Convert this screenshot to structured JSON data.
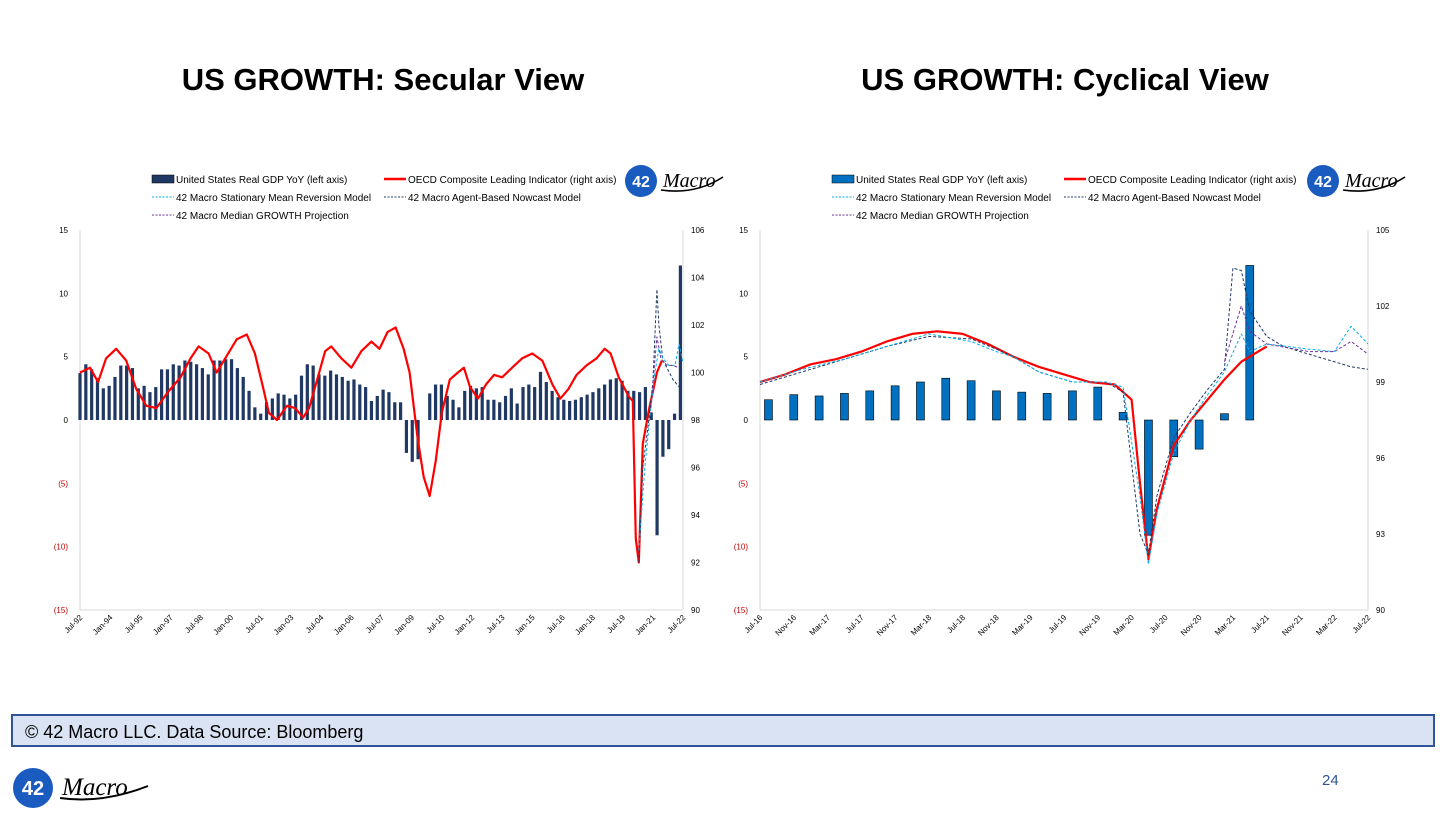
{
  "slide": {
    "footer_text": "© 42 Macro LLC. Data Source: Bloomberg",
    "page_number": "24",
    "brand": {
      "badge": "42",
      "script": "Macro"
    }
  },
  "colors": {
    "gdp_bar": "#1f3864",
    "gdp_bar_cyclical": "#0070c0",
    "oecd": "#ff0000",
    "mean_reversion": "#00b0f0",
    "nowcast": "#1f3864",
    "median": "#7030a0",
    "brand_blue": "#1a5bbf"
  },
  "legend_labels": {
    "gdp": "United States Real GDP YoY (left axis)",
    "oecd": "OECD Composite Leading Indicator (right axis)",
    "mean_reversion": "42 Macro Stationary Mean Reversion Model",
    "nowcast": "42 Macro Agent-Based Nowcast Model",
    "median": "42 Macro Median GROWTH Projection"
  },
  "chart_data": [
    {
      "type": "bar+line",
      "title": "US GROWTH: Secular View",
      "y_left": {
        "min": -15,
        "max": 15,
        "ticks": [
          "15",
          "10",
          "5",
          "0",
          "(5)",
          "(10)",
          "(15)"
        ]
      },
      "y_right": {
        "min": 90,
        "max": 106,
        "ticks": [
          "106",
          "104",
          "102",
          "100",
          "98",
          "96",
          "94",
          "92",
          "90"
        ]
      },
      "x_ticks": [
        "Jul-92",
        "Jan-94",
        "Jul-95",
        "Jan-97",
        "Jul-98",
        "Jan-00",
        "Jul-01",
        "Jan-03",
        "Jul-04",
        "Jan-06",
        "Jul-07",
        "Jan-09",
        "Jul-10",
        "Jan-12",
        "Jul-13",
        "Jan-15",
        "Jul-16",
        "Jan-18",
        "Jul-19",
        "Jan-21",
        "Jul-22"
      ],
      "x_range": [
        1992.5,
        2022.5
      ],
      "gdp_quarterly": [
        3.7,
        4.4,
        4.0,
        3.3,
        2.5,
        2.7,
        3.4,
        4.3,
        4.3,
        4.1,
        2.5,
        2.7,
        2.2,
        2.6,
        4.0,
        4.0,
        4.4,
        4.3,
        4.7,
        4.6,
        4.4,
        4.1,
        3.6,
        4.7,
        4.7,
        4.8,
        4.8,
        4.1,
        3.4,
        2.3,
        1.0,
        0.5,
        1.4,
        1.7,
        2.1,
        2.0,
        1.7,
        2.0,
        3.5,
        4.4,
        4.3,
        3.6,
        3.5,
        3.9,
        3.6,
        3.4,
        3.1,
        3.2,
        2.8,
        2.6,
        1.5,
        1.9,
        2.4,
        2.2,
        1.4,
        1.4,
        -2.6,
        -3.3,
        -3.1,
        0.0,
        2.1,
        2.8,
        2.8,
        1.9,
        1.6,
        1.0,
        2.3,
        2.7,
        2.5,
        2.6,
        1.6,
        1.6,
        1.4,
        1.9,
        2.5,
        1.3,
        2.6,
        2.8,
        2.6,
        3.8,
        3.0,
        2.3,
        1.8,
        1.6,
        1.5,
        1.6,
        1.8,
        2.0,
        2.2,
        2.5,
        2.8,
        3.2,
        3.3,
        3.1,
        2.3,
        2.3,
        2.2,
        2.6,
        0.6,
        -9.1,
        -2.9,
        -2.3,
        0.5,
        12.2
      ],
      "oecd_points": [
        [
          1992.5,
          100.0
        ],
        [
          1993.0,
          100.2
        ],
        [
          1993.4,
          99.6
        ],
        [
          1993.8,
          100.6
        ],
        [
          1994.3,
          101.0
        ],
        [
          1994.8,
          100.5
        ],
        [
          1995.3,
          99.3
        ],
        [
          1995.8,
          98.6
        ],
        [
          1996.3,
          98.5
        ],
        [
          1996.9,
          99.2
        ],
        [
          1997.5,
          99.8
        ],
        [
          1998.0,
          100.6
        ],
        [
          1998.4,
          101.1
        ],
        [
          1998.9,
          100.8
        ],
        [
          1999.3,
          100.0
        ],
        [
          1999.8,
          100.7
        ],
        [
          2000.3,
          101.4
        ],
        [
          2000.8,
          101.6
        ],
        [
          2001.2,
          100.8
        ],
        [
          2001.6,
          99.4
        ],
        [
          2001.9,
          98.3
        ],
        [
          2002.3,
          98.0
        ],
        [
          2002.8,
          98.6
        ],
        [
          2003.2,
          98.5
        ],
        [
          2003.6,
          98.1
        ],
        [
          2003.9,
          98.5
        ],
        [
          2004.3,
          99.7
        ],
        [
          2004.7,
          100.9
        ],
        [
          2005.0,
          101.1
        ],
        [
          2005.5,
          100.6
        ],
        [
          2006.0,
          100.2
        ],
        [
          2006.5,
          100.9
        ],
        [
          2007.0,
          101.3
        ],
        [
          2007.4,
          101.0
        ],
        [
          2007.8,
          101.7
        ],
        [
          2008.2,
          101.9
        ],
        [
          2008.6,
          101.0
        ],
        [
          2008.9,
          100.0
        ],
        [
          2009.3,
          97.2
        ],
        [
          2009.6,
          95.6
        ],
        [
          2009.9,
          94.8
        ],
        [
          2010.2,
          96.3
        ],
        [
          2010.5,
          98.3
        ],
        [
          2010.9,
          99.7
        ],
        [
          2011.3,
          100.0
        ],
        [
          2011.6,
          100.2
        ],
        [
          2011.9,
          99.4
        ],
        [
          2012.3,
          98.9
        ],
        [
          2012.7,
          99.5
        ],
        [
          2013.1,
          99.9
        ],
        [
          2013.5,
          99.8
        ],
        [
          2014.0,
          100.2
        ],
        [
          2014.5,
          100.6
        ],
        [
          2015.0,
          100.8
        ],
        [
          2015.5,
          100.5
        ],
        [
          2016.0,
          99.5
        ],
        [
          2016.4,
          98.9
        ],
        [
          2016.8,
          99.3
        ],
        [
          2017.2,
          99.9
        ],
        [
          2017.7,
          100.3
        ],
        [
          2018.2,
          100.6
        ],
        [
          2018.6,
          101.0
        ],
        [
          2018.9,
          100.8
        ],
        [
          2019.3,
          99.8
        ],
        [
          2019.8,
          99.0
        ],
        [
          2020.0,
          98.8
        ],
        [
          2020.15,
          93.0
        ],
        [
          2020.3,
          92.0
        ],
        [
          2020.5,
          97.0
        ],
        [
          2020.8,
          98.4
        ],
        [
          2021.0,
          99.2
        ],
        [
          2021.2,
          100.0
        ],
        [
          2021.45,
          100.5
        ]
      ],
      "nowcast_points": [
        [
          2020.3,
          92.0
        ],
        [
          2020.5,
          96.0
        ],
        [
          2020.8,
          98.0
        ],
        [
          2021.0,
          99.6
        ],
        [
          2021.2,
          103.5
        ],
        [
          2021.3,
          102.0
        ],
        [
          2021.5,
          100.5
        ],
        [
          2021.7,
          100.2
        ],
        [
          2022.0,
          99.7
        ],
        [
          2022.3,
          99.4
        ]
      ],
      "mean_reversion_points": [
        [
          2020.3,
          92.5
        ],
        [
          2020.6,
          96.0
        ],
        [
          2020.9,
          98.5
        ],
        [
          2021.1,
          100.0
        ],
        [
          2021.3,
          101.0
        ],
        [
          2021.5,
          100.6
        ],
        [
          2021.8,
          100.3
        ],
        [
          2022.1,
          100.3
        ],
        [
          2022.3,
          101.2
        ],
        [
          2022.5,
          100.4
        ]
      ],
      "median_points": [
        [
          2020.9,
          98.5
        ],
        [
          2021.2,
          101.5
        ],
        [
          2021.4,
          100.6
        ],
        [
          2021.7,
          100.3
        ],
        [
          2022.0,
          100.3
        ],
        [
          2022.3,
          100.2
        ]
      ]
    },
    {
      "type": "bar+line",
      "title": "US GROWTH: Cyclical View",
      "y_left": {
        "min": -15,
        "max": 15,
        "ticks": [
          "15",
          "10",
          "5",
          "0",
          "(5)",
          "(10)",
          "(15)"
        ]
      },
      "y_right": {
        "min": 90,
        "max": 105,
        "ticks": [
          "105",
          "102",
          "99",
          "96",
          "93",
          "90"
        ]
      },
      "x_ticks": [
        "Jul-16",
        "Nov-16",
        "Mar-17",
        "Jul-17",
        "Nov-17",
        "Mar-18",
        "Jul-18",
        "Nov-18",
        "Mar-19",
        "Jul-19",
        "Nov-19",
        "Mar-20",
        "Jul-20",
        "Nov-20",
        "Mar-21",
        "Jul-21",
        "Nov-21",
        "Mar-22",
        "Jul-22"
      ],
      "x_range": [
        0,
        72
      ],
      "gdp_quarterly": [
        [
          1.6,
          1
        ],
        [
          2.0,
          4
        ],
        [
          1.9,
          7
        ],
        [
          2.1,
          10
        ],
        [
          2.3,
          13
        ],
        [
          2.7,
          16
        ],
        [
          3.0,
          19
        ],
        [
          3.3,
          22
        ],
        [
          3.1,
          25
        ],
        [
          2.3,
          28
        ],
        [
          2.2,
          31
        ],
        [
          2.1,
          34
        ],
        [
          2.3,
          37
        ],
        [
          2.6,
          40
        ],
        [
          0.6,
          43
        ],
        [
          -9.1,
          46
        ],
        [
          -2.9,
          49
        ],
        [
          -2.3,
          52
        ],
        [
          0.5,
          55
        ],
        [
          12.2,
          58
        ]
      ],
      "oecd_points": [
        [
          0,
          99.0
        ],
        [
          3,
          99.3
        ],
        [
          6,
          99.7
        ],
        [
          9,
          99.9
        ],
        [
          12,
          100.2
        ],
        [
          15,
          100.6
        ],
        [
          18,
          100.9
        ],
        [
          21,
          101.0
        ],
        [
          24,
          100.9
        ],
        [
          27,
          100.5
        ],
        [
          30,
          100.0
        ],
        [
          33,
          99.6
        ],
        [
          36,
          99.3
        ],
        [
          39,
          99.0
        ],
        [
          42,
          98.9
        ],
        [
          44,
          98.3
        ],
        [
          45,
          95.0
        ],
        [
          46,
          92.0
        ],
        [
          47,
          94.0
        ],
        [
          49,
          96.5
        ],
        [
          51,
          97.5
        ],
        [
          53,
          98.3
        ],
        [
          55,
          99.1
        ],
        [
          57,
          99.8
        ],
        [
          59,
          100.2
        ],
        [
          60,
          100.4
        ]
      ],
      "nowcast_points": [
        [
          0,
          98.9
        ],
        [
          5,
          99.4
        ],
        [
          10,
          99.9
        ],
        [
          15,
          100.4
        ],
        [
          20,
          100.8
        ],
        [
          25,
          100.7
        ],
        [
          28,
          100.3
        ],
        [
          30,
          100.0
        ],
        [
          33,
          99.4
        ],
        [
          37,
          99.0
        ],
        [
          41,
          99.0
        ],
        [
          43,
          98.6
        ],
        [
          45,
          93.0
        ],
        [
          46,
          92.2
        ],
        [
          47,
          94.5
        ],
        [
          49,
          96.8
        ],
        [
          51,
          97.8
        ],
        [
          53,
          98.7
        ],
        [
          55,
          99.5
        ],
        [
          56,
          103.5
        ],
        [
          57,
          103.4
        ],
        [
          58,
          101.8
        ],
        [
          60,
          100.8
        ],
        [
          62,
          100.4
        ],
        [
          66,
          100.0
        ],
        [
          68,
          99.8
        ],
        [
          70,
          99.6
        ],
        [
          72,
          99.5
        ]
      ],
      "mean_reversion_points": [
        [
          0,
          99.0
        ],
        [
          5,
          99.5
        ],
        [
          10,
          99.9
        ],
        [
          15,
          100.4
        ],
        [
          20,
          100.9
        ],
        [
          25,
          100.6
        ],
        [
          28,
          100.2
        ],
        [
          30,
          100.0
        ],
        [
          33,
          99.4
        ],
        [
          37,
          99.0
        ],
        [
          41,
          99.0
        ],
        [
          43,
          98.8
        ],
        [
          45,
          94.5
        ],
        [
          46,
          91.8
        ],
        [
          47,
          93.8
        ],
        [
          49,
          96.2
        ],
        [
          51,
          97.5
        ],
        [
          53,
          98.5
        ],
        [
          55,
          99.4
        ],
        [
          57,
          100.9
        ],
        [
          58,
          100.2
        ],
        [
          60,
          100.5
        ],
        [
          65,
          100.3
        ],
        [
          68,
          100.2
        ],
        [
          70,
          101.2
        ],
        [
          72,
          100.5
        ]
      ],
      "median_points": [
        [
          55,
          99.8
        ],
        [
          57,
          102.0
        ],
        [
          58,
          101.0
        ],
        [
          60,
          100.5
        ],
        [
          65,
          100.2
        ],
        [
          68,
          100.2
        ],
        [
          70,
          100.6
        ],
        [
          72,
          100.1
        ]
      ]
    }
  ]
}
